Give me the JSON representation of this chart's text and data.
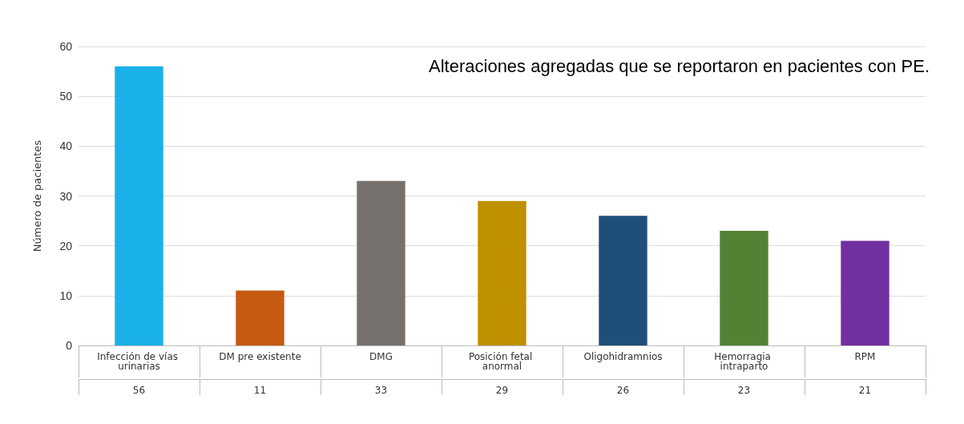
{
  "chart_data": {
    "type": "bar",
    "title": "Alteraciones agregadas que se reportaron en pacientes con PE.",
    "ylabel": "Número de pacientes",
    "categories": [
      "Infección de vías urinarias",
      "DM pre existente",
      "DMG",
      "Posición fetal anormal",
      "Oligohidramnios",
      "Hemorragia intraparto",
      "RPM"
    ],
    "values": [
      56,
      11,
      33,
      29,
      26,
      23,
      21
    ],
    "colors": [
      "#1ab0e8",
      "#c55a11",
      "#77716e",
      "#bf9000",
      "#1f4e79",
      "#548235",
      "#7030a0"
    ],
    "ylim": [
      0,
      60
    ],
    "yticks": [
      0,
      10,
      20,
      30,
      40,
      50,
      60
    ],
    "grid": "y",
    "data_labels": true
  }
}
